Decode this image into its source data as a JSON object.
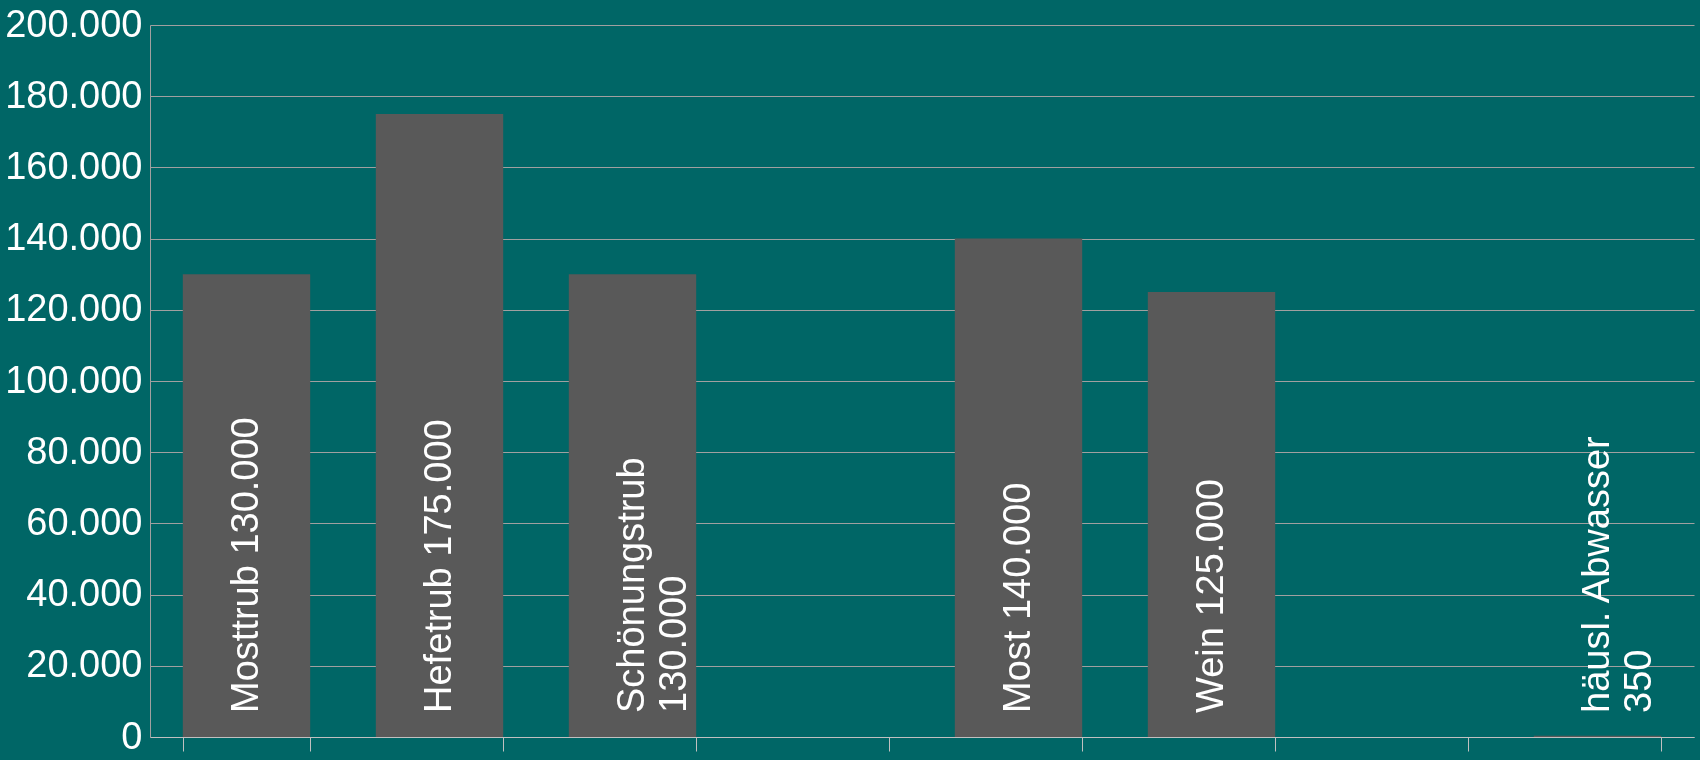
{
  "chart_data": {
    "type": "bar",
    "categories": [
      null,
      null,
      null,
      null,
      null,
      null,
      null,
      null
    ],
    "values": [
      130000,
      175000,
      130000,
      null,
      140000,
      125000,
      null,
      350
    ],
    "value_labels": [
      "Mosttrub 130.000",
      "Hefetrub 175.000",
      "Schönungstrub 130.000",
      null,
      "Most 140.000",
      "Wein 125.000",
      null,
      "häusl. Abwasser 350"
    ],
    "color": "#595959",
    "ylim": [
      0,
      200000
    ],
    "yticks": [
      {
        "value": 0,
        "label": "0"
      },
      {
        "value": 20000,
        "label": "20.000"
      },
      {
        "value": 40000,
        "label": "40.000"
      },
      {
        "value": 60000,
        "label": "60.000"
      },
      {
        "value": 80000,
        "label": "80.000"
      },
      {
        "value": 100000,
        "label": "100.000"
      },
      {
        "value": 120000,
        "label": "120.000"
      },
      {
        "value": 140000,
        "label": "140.000"
      },
      {
        "value": 160000,
        "label": "160.000"
      },
      {
        "value": 180000,
        "label": "180.000"
      },
      {
        "value": 200000,
        "label": "200.000"
      }
    ],
    "grid": "y"
  }
}
